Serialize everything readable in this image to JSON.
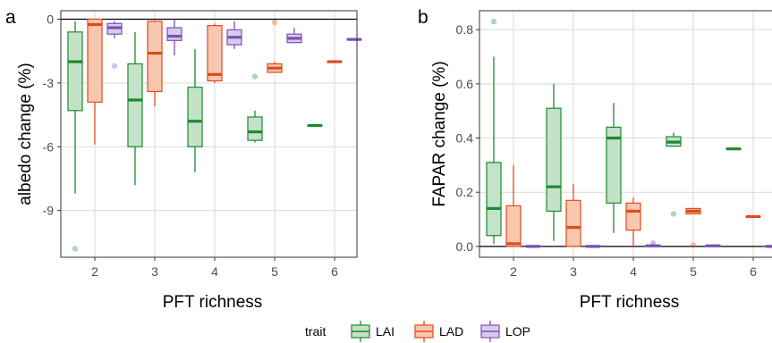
{
  "chart_data": [
    {
      "panel_label": "a",
      "type": "boxplot",
      "xlabel": "PFT richness",
      "ylabel": "albedo change (%)",
      "categories": [
        "2",
        "3",
        "4",
        "5",
        "6"
      ],
      "y_ticks": [
        "0",
        "-3",
        "-6",
        "-9"
      ],
      "ylim": [
        -11.2,
        0.4
      ],
      "reference_line": 0,
      "grid": true,
      "series": [
        {
          "name": "LAI",
          "boxes": [
            {
              "x": "2",
              "whisker_low": -8.2,
              "q1": -4.3,
              "median": -2.0,
              "q3": -0.6,
              "whisker_high": -0.1,
              "outliers": [
                -10.8
              ]
            },
            {
              "x": "3",
              "whisker_low": -7.8,
              "q1": -6.0,
              "median": -3.8,
              "q3": -2.1,
              "whisker_high": -0.6,
              "outliers": []
            },
            {
              "x": "4",
              "whisker_low": -7.2,
              "q1": -6.0,
              "median": -4.8,
              "q3": -3.2,
              "whisker_high": -1.4,
              "outliers": []
            },
            {
              "x": "5",
              "whisker_low": -5.8,
              "q1": -5.7,
              "median": -5.3,
              "q3": -4.6,
              "whisker_high": -4.3,
              "outliers": [
                -2.7
              ]
            },
            {
              "x": "6",
              "whisker_low": -5.0,
              "q1": -5.0,
              "median": -5.0,
              "q3": -5.0,
              "whisker_high": -5.0,
              "outliers": []
            }
          ]
        },
        {
          "name": "LAD",
          "boxes": [
            {
              "x": "2",
              "whisker_low": -5.9,
              "q1": -3.9,
              "median": -0.25,
              "q3": 0.0,
              "whisker_high": 0.0,
              "outliers": []
            },
            {
              "x": "3",
              "whisker_low": -4.1,
              "q1": -3.4,
              "median": -1.6,
              "q3": -0.1,
              "whisker_high": 0.0,
              "outliers": []
            },
            {
              "x": "4",
              "whisker_low": -3.0,
              "q1": -2.9,
              "median": -2.6,
              "q3": -0.3,
              "whisker_high": -0.2,
              "outliers": []
            },
            {
              "x": "5",
              "whisker_low": -2.5,
              "q1": -2.5,
              "median": -2.3,
              "q3": -2.1,
              "whisker_high": -2.0,
              "outliers": [
                -0.15
              ]
            },
            {
              "x": "6",
              "whisker_low": -2.0,
              "q1": -2.0,
              "median": -2.0,
              "q3": -2.0,
              "whisker_high": -2.0,
              "outliers": []
            }
          ]
        },
        {
          "name": "LOP",
          "boxes": [
            {
              "x": "2",
              "whisker_low": -0.9,
              "q1": -0.7,
              "median": -0.4,
              "q3": -0.2,
              "whisker_high": -0.1,
              "outliers": [
                -2.2
              ]
            },
            {
              "x": "3",
              "whisker_low": -1.7,
              "q1": -1.0,
              "median": -0.8,
              "q3": -0.4,
              "whisker_high": 0.0,
              "outliers": []
            },
            {
              "x": "4",
              "whisker_low": -1.4,
              "q1": -1.2,
              "median": -0.85,
              "q3": -0.5,
              "whisker_high": -0.1,
              "outliers": []
            },
            {
              "x": "5",
              "whisker_low": -1.1,
              "q1": -1.1,
              "median": -0.9,
              "q3": -0.7,
              "whisker_high": -0.4,
              "outliers": []
            },
            {
              "x": "6",
              "whisker_low": -0.95,
              "q1": -0.95,
              "median": -0.95,
              "q3": -0.95,
              "whisker_high": -0.95,
              "outliers": []
            }
          ]
        }
      ]
    },
    {
      "panel_label": "b",
      "type": "boxplot",
      "xlabel": "PFT richness",
      "ylabel": "FAPAR change (%)",
      "categories": [
        "2",
        "3",
        "4",
        "5",
        "6"
      ],
      "y_ticks": [
        "0.0",
        "0.2",
        "0.4",
        "0.6",
        "0.8"
      ],
      "ylim": [
        -0.04,
        0.87
      ],
      "reference_line": 0,
      "grid": true,
      "series": [
        {
          "name": "LAI",
          "boxes": [
            {
              "x": "2",
              "whisker_low": 0.01,
              "q1": 0.04,
              "median": 0.14,
              "q3": 0.31,
              "whisker_high": 0.7,
              "outliers": [
                0.83
              ]
            },
            {
              "x": "3",
              "whisker_low": 0.02,
              "q1": 0.13,
              "median": 0.22,
              "q3": 0.51,
              "whisker_high": 0.6,
              "outliers": []
            },
            {
              "x": "4",
              "whisker_low": 0.05,
              "q1": 0.16,
              "median": 0.4,
              "q3": 0.44,
              "whisker_high": 0.53,
              "outliers": []
            },
            {
              "x": "5",
              "whisker_low": 0.37,
              "q1": 0.37,
              "median": 0.385,
              "q3": 0.405,
              "whisker_high": 0.42,
              "outliers": [
                0.12
              ]
            },
            {
              "x": "6",
              "whisker_low": 0.36,
              "q1": 0.36,
              "median": 0.36,
              "q3": 0.36,
              "whisker_high": 0.36,
              "outliers": []
            }
          ]
        },
        {
          "name": "LAD",
          "boxes": [
            {
              "x": "2",
              "whisker_low": 0.0,
              "q1": 0.0,
              "median": 0.01,
              "q3": 0.15,
              "whisker_high": 0.3,
              "outliers": []
            },
            {
              "x": "3",
              "whisker_low": 0.0,
              "q1": 0.0,
              "median": 0.07,
              "q3": 0.17,
              "whisker_high": 0.23,
              "outliers": []
            },
            {
              "x": "4",
              "whisker_low": 0.0,
              "q1": 0.06,
              "median": 0.13,
              "q3": 0.16,
              "whisker_high": 0.18,
              "outliers": []
            },
            {
              "x": "5",
              "whisker_low": 0.12,
              "q1": 0.12,
              "median": 0.13,
              "q3": 0.14,
              "whisker_high": 0.14,
              "outliers": [
                0.005
              ]
            },
            {
              "x": "6",
              "whisker_low": 0.11,
              "q1": 0.11,
              "median": 0.11,
              "q3": 0.11,
              "whisker_high": 0.11,
              "outliers": []
            }
          ]
        },
        {
          "name": "LOP",
          "boxes": [
            {
              "x": "2",
              "whisker_low": 0.0,
              "q1": 0.0,
              "median": 0.0,
              "q3": 0.003,
              "whisker_high": 0.005,
              "outliers": []
            },
            {
              "x": "3",
              "whisker_low": 0.0,
              "q1": 0.0,
              "median": 0.0,
              "q3": 0.003,
              "whisker_high": 0.005,
              "outliers": []
            },
            {
              "x": "4",
              "whisker_low": 0.0,
              "q1": 0.0,
              "median": 0.002,
              "q3": 0.005,
              "whisker_high": 0.01,
              "outliers": [
                0.012
              ]
            },
            {
              "x": "5",
              "whisker_low": 0.0,
              "q1": 0.0,
              "median": 0.002,
              "q3": 0.005,
              "whisker_high": 0.008,
              "outliers": []
            },
            {
              "x": "6",
              "whisker_low": 0.0,
              "q1": 0.0,
              "median": 0.0,
              "q3": 0.003,
              "whisker_high": 0.005,
              "outliers": []
            }
          ]
        }
      ]
    }
  ],
  "legend": {
    "title": "trait",
    "placement": "bottom",
    "items": [
      "LAI",
      "LAD",
      "LOP"
    ]
  },
  "colors": {
    "LAI": {
      "stroke": "#1b8a2e",
      "fill": "#c3e2c8",
      "median": "#1b8a2e"
    },
    "LAD": {
      "stroke": "#e04a1a",
      "fill": "#f8c7b0",
      "median": "#e04a1a"
    },
    "LOP": {
      "stroke": "#7a50b8",
      "fill": "#d9cceb",
      "median": "#7a50b8"
    },
    "grid": "#d9d9d9",
    "panel_border": "#333333",
    "zero_line": "#000000"
  }
}
